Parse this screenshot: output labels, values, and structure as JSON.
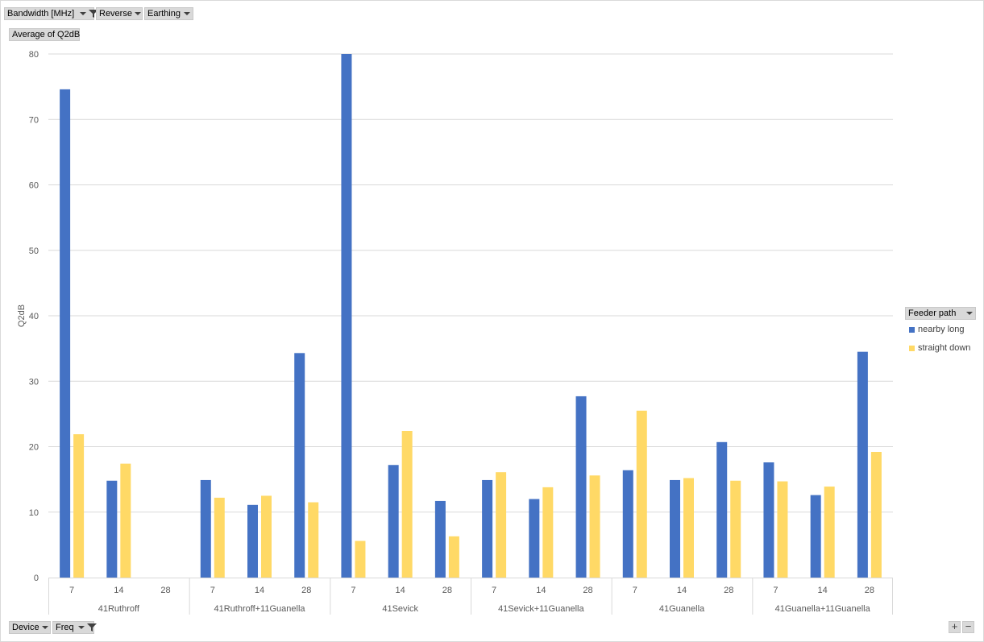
{
  "filters": {
    "bandwidth": "Bandwidth [MHz]",
    "reverse": "Reverse",
    "earthing": "Earthing"
  },
  "value_field": "Average of Q2dB",
  "axis_fields": {
    "device": "Device",
    "freq": "Freq"
  },
  "legend_field": "Feeder path",
  "colors": {
    "nearby_long": "#4472C4",
    "straight_down": "#FFD966",
    "grid": "#d9d9d9",
    "button_bg": "#d9d9d9"
  },
  "icons": [
    "filter-funnel-icon",
    "dropdown-caret-icon",
    "plus-icon",
    "minus-icon"
  ],
  "chart_data": {
    "type": "bar",
    "ylabel": "Q2dB",
    "xlabel": "",
    "ylim": [
      0,
      80
    ],
    "yticks": [
      0,
      10,
      20,
      30,
      40,
      50,
      60,
      70,
      80
    ],
    "grid": true,
    "legend_position": "right",
    "groups": [
      {
        "name": "41Ruthroff",
        "categories": [
          "7",
          "14",
          "28"
        ]
      },
      {
        "name": "41Ruthroff+11Guanella",
        "categories": [
          "7",
          "14",
          "28"
        ]
      },
      {
        "name": "41Sevick",
        "categories": [
          "7",
          "14",
          "28"
        ]
      },
      {
        "name": "41Sevick+11Guanella",
        "categories": [
          "7",
          "14",
          "28"
        ]
      },
      {
        "name": "41Guanella",
        "categories": [
          "7",
          "14",
          "28"
        ]
      },
      {
        "name": "41Guanella+11Guanella",
        "categories": [
          "7",
          "14",
          "28"
        ]
      }
    ],
    "series": [
      {
        "name": "nearby long",
        "values": [
          74.6,
          14.8,
          null,
          14.9,
          11.1,
          34.3,
          80.0,
          17.2,
          11.7,
          14.9,
          12.0,
          27.7,
          16.4,
          14.9,
          20.7,
          17.6,
          12.6,
          34.5
        ]
      },
      {
        "name": "straight down",
        "values": [
          21.9,
          17.4,
          null,
          12.2,
          12.5,
          11.5,
          5.6,
          22.4,
          6.3,
          16.1,
          13.8,
          15.6,
          25.5,
          15.2,
          14.8,
          14.7,
          13.9,
          19.2
        ]
      }
    ]
  }
}
